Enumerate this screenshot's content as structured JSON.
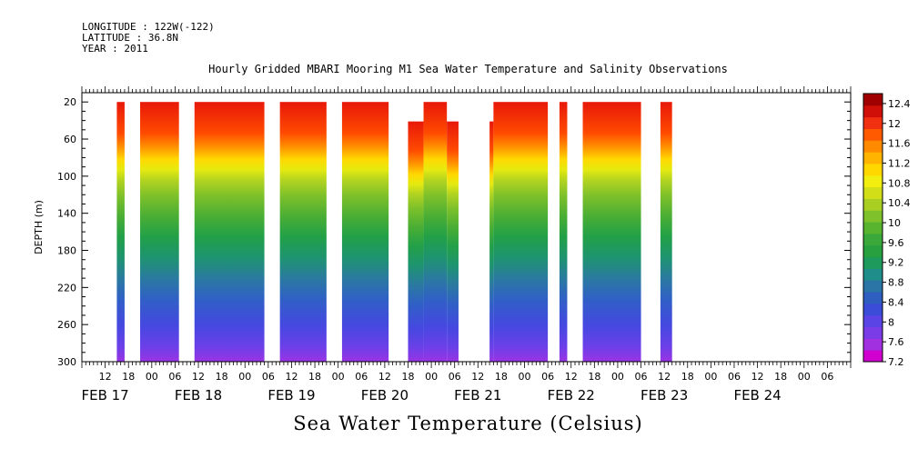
{
  "header": {
    "longitude": "LONGITUDE : 122W(-122)",
    "latitude": "LATITUDE : 36.8N",
    "year": "YEAR : 2011"
  },
  "chart_data": {
    "type": "heatmap",
    "title": "Hourly Gridded MBARI Mooring M1 Sea Water Temperature and Salinity Observations",
    "ylabel": "DEPTH (m)",
    "xlabel": "Sea Water Temperature (Celsius)",
    "y_ticks": [
      "20",
      "60",
      "100",
      "140",
      "180",
      "220",
      "260",
      "300"
    ],
    "y_tick_values": [
      20,
      60,
      100,
      140,
      180,
      220,
      260,
      300
    ],
    "ylim": [
      10,
      300
    ],
    "y_inverted": true,
    "x_hour_labels": [
      "12",
      "18",
      "00",
      "06",
      "12",
      "18",
      "00",
      "06",
      "12",
      "18",
      "00",
      "06",
      "12",
      "18",
      "00",
      "06",
      "12",
      "18",
      "00",
      "06",
      "12",
      "18",
      "00",
      "06",
      "12",
      "18",
      "00",
      "06",
      "12",
      "18",
      "00",
      "06"
    ],
    "x_day_labels": [
      "FEB 17",
      "FEB 18",
      "FEB 19",
      "FEB 20",
      "FEB 21",
      "FEB 22",
      "FEB 23",
      "FEB 24"
    ],
    "x_range_hours": [
      6,
      204
    ],
    "colorbar_labels": [
      "12.4",
      "12",
      "11.6",
      "11.2",
      "10.8",
      "10.4",
      "10",
      "9.6",
      "9.2",
      "8.8",
      "8.4",
      "8",
      "7.6",
      "7.2"
    ],
    "color_levels": [
      7.2,
      12.6
    ],
    "colors": [
      "#d000d0",
      "#a030e0",
      "#7a3ce6",
      "#5a44e6",
      "#3b4cd8",
      "#2d5ec0",
      "#2a74a6",
      "#1f8d8a",
      "#1e9a5c",
      "#28a040",
      "#3aa83a",
      "#58b32e",
      "#7ec12a",
      "#a8cf22",
      "#d2df18",
      "#f2ee10",
      "#ffd800",
      "#ffb400",
      "#ff8a00",
      "#ff5a00",
      "#f03010",
      "#d01008",
      "#a00000"
    ],
    "data_segments": [
      {
        "start_hour": 15,
        "end_hour": 17,
        "top_depth": 20
      },
      {
        "start_hour": 21,
        "end_hour": 31,
        "top_depth": 20
      },
      {
        "start_hour": 35,
        "end_hour": 53,
        "top_depth": 20
      },
      {
        "start_hour": 57,
        "end_hour": 69,
        "top_depth": 20
      },
      {
        "start_hour": 73,
        "end_hour": 85,
        "top_depth": 20
      },
      {
        "start_hour": 90,
        "end_hour": 94,
        "top_depth": 41
      },
      {
        "start_hour": 94,
        "end_hour": 100,
        "top_depth": 20
      },
      {
        "start_hour": 100,
        "end_hour": 103,
        "top_depth": 41
      },
      {
        "start_hour": 111,
        "end_hour": 112,
        "top_depth": 41
      },
      {
        "start_hour": 112,
        "end_hour": 126,
        "top_depth": 20
      },
      {
        "start_hour": 129,
        "end_hour": 131,
        "top_depth": 20
      },
      {
        "start_hour": 135,
        "end_hour": 150,
        "top_depth": 20
      },
      {
        "start_hour": 155,
        "end_hour": 158,
        "top_depth": 20
      }
    ]
  }
}
